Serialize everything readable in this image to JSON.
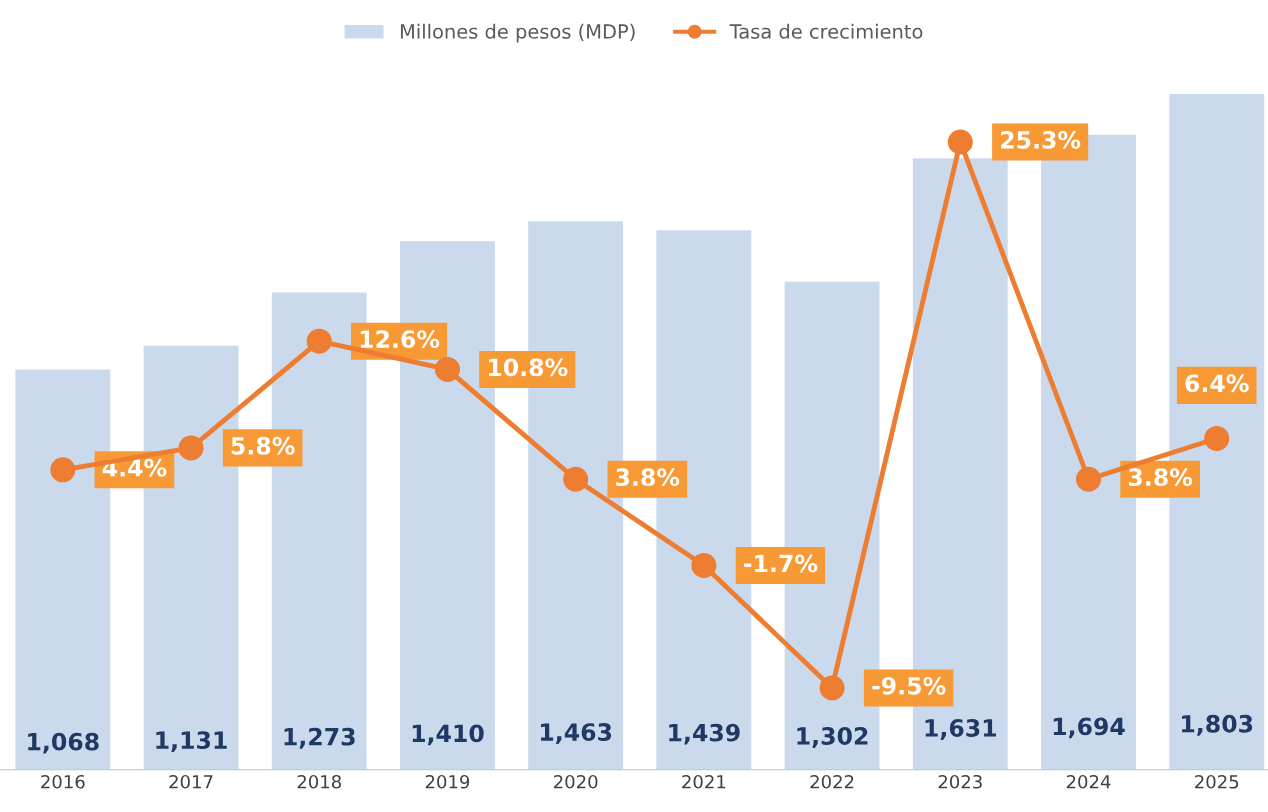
{
  "chart_data": {
    "type": "bar",
    "categories": [
      "2016",
      "2017",
      "2018",
      "2019",
      "2020",
      "2021",
      "2022",
      "2023",
      "2024",
      "2025"
    ],
    "series": [
      {
        "name": "Millones de pesos (MDP)",
        "color": "#cbd9ec",
        "values": [
          1068,
          1131,
          1273,
          1410,
          1463,
          1439,
          1302,
          1631,
          1694,
          1803
        ],
        "value_labels": [
          "1,068",
          "1,131",
          "1,273",
          "1,410",
          "1,463",
          "1,439",
          "1,302",
          "1,631",
          "1,694",
          "1,803"
        ]
      },
      {
        "name": "Tasa de crecimiento",
        "type": "line",
        "axis": "y2",
        "color": "#ed7d31",
        "marker": "circle",
        "values": [
          4.4,
          5.8,
          12.6,
          10.8,
          3.8,
          -1.7,
          -9.5,
          25.3,
          3.8,
          6.4
        ],
        "value_labels": [
          "4.4%",
          "5.8%",
          "12.6%",
          "10.8%",
          "3.8%",
          "-1.7%",
          "-9.5%",
          "25.3%",
          "3.8%",
          "6.4%"
        ]
      }
    ],
    "tick_labels": "x",
    "legend": "top",
    "grid": false
  }
}
